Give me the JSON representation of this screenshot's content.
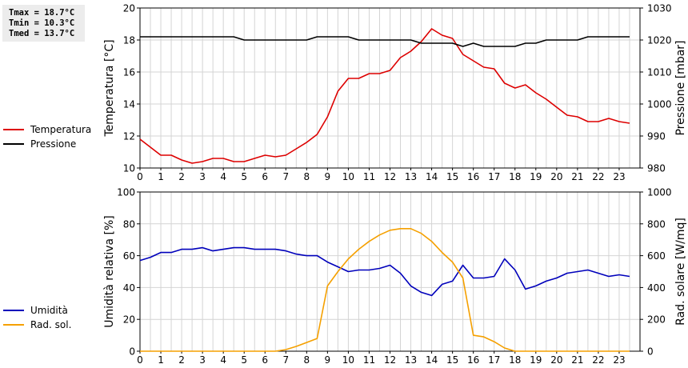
{
  "stats": {
    "tmax": "Tmax = 18.7°C",
    "tmin": "Tmin = 10.3°C",
    "tmed": "Tmed = 13.7°C"
  },
  "colors": {
    "temperature": "#dd0000",
    "pressure": "#000000",
    "humidity": "#0000bb",
    "radiation": "#f5a000"
  },
  "chart_data": [
    {
      "type": "line",
      "x_ticks": [
        0,
        1,
        2,
        3,
        4,
        5,
        6,
        7,
        8,
        9,
        10,
        11,
        12,
        13,
        14,
        15,
        16,
        17,
        18,
        19,
        20,
        21,
        22,
        23
      ],
      "xlim": [
        0,
        24
      ],
      "ylabel": "Temperatura [°C]",
      "ylim": [
        10,
        20
      ],
      "y_ticks": [
        10,
        12,
        14,
        16,
        18,
        20
      ],
      "y2label": "Pressione [mbar]",
      "y2lim": [
        980,
        1030
      ],
      "y2_ticks": [
        980,
        990,
        1000,
        1010,
        1020,
        1030
      ],
      "grid": true,
      "legend_position": "left",
      "series": [
        {
          "name": "Temperatura",
          "axis": "left",
          "x": [
            0,
            0.5,
            1,
            1.5,
            2,
            2.5,
            3,
            3.5,
            4,
            4.5,
            5,
            5.5,
            6,
            6.5,
            7,
            7.5,
            8,
            8.5,
            9,
            9.5,
            10,
            10.5,
            11,
            11.5,
            12,
            12.5,
            13,
            13.5,
            14,
            14.5,
            15,
            15.5,
            16,
            16.5,
            17,
            17.5,
            18,
            18.5,
            19,
            19.5,
            20,
            20.5,
            21,
            21.5,
            22,
            22.5,
            23,
            23.5
          ],
          "y": [
            11.8,
            11.3,
            10.8,
            10.8,
            10.5,
            10.3,
            10.4,
            10.6,
            10.6,
            10.4,
            10.4,
            10.6,
            10.8,
            10.7,
            10.8,
            11.2,
            11.6,
            12.1,
            13.2,
            14.8,
            15.6,
            15.6,
            15.9,
            15.9,
            16.1,
            16.9,
            17.3,
            17.9,
            18.7,
            18.3,
            18.1,
            17.1,
            16.7,
            16.3,
            16.2,
            15.3,
            15.0,
            15.2,
            14.7,
            14.3,
            13.8,
            13.3,
            13.2,
            12.9,
            12.9,
            13.1,
            12.9,
            12.8
          ]
        },
        {
          "name": "Pressione",
          "axis": "right",
          "x": [
            0,
            0.5,
            1,
            1.5,
            2,
            2.5,
            3,
            3.5,
            4,
            4.5,
            5,
            5.5,
            6,
            6.5,
            7,
            7.5,
            8,
            8.5,
            9,
            9.5,
            10,
            10.5,
            11,
            11.5,
            12,
            12.5,
            13,
            13.5,
            14,
            14.5,
            15,
            15.5,
            16,
            16.5,
            17,
            17.5,
            18,
            18.5,
            19,
            19.5,
            20,
            20.5,
            21,
            21.5,
            22,
            22.5,
            23,
            23.5
          ],
          "y": [
            1021,
            1021,
            1021,
            1021,
            1021,
            1021,
            1021,
            1021,
            1021,
            1021,
            1020,
            1020,
            1020,
            1020,
            1020,
            1020,
            1020,
            1021,
            1021,
            1021,
            1021,
            1020,
            1020,
            1020,
            1020,
            1020,
            1020,
            1019,
            1019,
            1019,
            1019,
            1018,
            1019,
            1018,
            1018,
            1018,
            1018,
            1019,
            1019,
            1020,
            1020,
            1020,
            1020,
            1021,
            1021,
            1021,
            1021,
            1021
          ]
        }
      ]
    },
    {
      "type": "line",
      "x_ticks": [
        0,
        1,
        2,
        3,
        4,
        5,
        6,
        7,
        8,
        9,
        10,
        11,
        12,
        13,
        14,
        15,
        16,
        17,
        18,
        19,
        20,
        21,
        22,
        23
      ],
      "xlim": [
        0,
        24
      ],
      "ylabel": "Umidità relativa [%]",
      "ylim": [
        0,
        100
      ],
      "y_ticks": [
        0,
        20,
        40,
        60,
        80,
        100
      ],
      "y2label": "Rad. solare [W/mq]",
      "y2lim": [
        0,
        1000
      ],
      "y2_ticks": [
        0,
        200,
        400,
        600,
        800,
        1000
      ],
      "grid": true,
      "legend_position": "left",
      "series": [
        {
          "name": "Umidità",
          "axis": "left",
          "x": [
            0,
            0.5,
            1,
            1.5,
            2,
            2.5,
            3,
            3.5,
            4,
            4.5,
            5,
            5.5,
            6,
            6.5,
            7,
            7.5,
            8,
            8.5,
            9,
            9.5,
            10,
            10.5,
            11,
            11.5,
            12,
            12.5,
            13,
            13.5,
            14,
            14.5,
            15,
            15.5,
            16,
            16.5,
            17,
            17.5,
            18,
            18.5,
            19,
            19.5,
            20,
            20.5,
            21,
            21.5,
            22,
            22.5,
            23,
            23.5
          ],
          "y": [
            57,
            59,
            62,
            62,
            64,
            64,
            65,
            63,
            64,
            65,
            65,
            64,
            64,
            64,
            63,
            61,
            60,
            60,
            56,
            53,
            50,
            51,
            51,
            52,
            54,
            49,
            41,
            37,
            35,
            42,
            44,
            54,
            46,
            46,
            47,
            58,
            51,
            39,
            41,
            44,
            46,
            49,
            50,
            51,
            49,
            47,
            48,
            47
          ]
        },
        {
          "name": "Rad. sol.",
          "axis": "right",
          "x": [
            0,
            0.5,
            1,
            1.5,
            2,
            2.5,
            3,
            3.5,
            4,
            4.5,
            5,
            5.5,
            6,
            6.5,
            7,
            7.5,
            8,
            8.5,
            9,
            9.5,
            10,
            10.5,
            11,
            11.5,
            12,
            12.5,
            13,
            13.5,
            14,
            14.5,
            15,
            15.5,
            16,
            16.5,
            17,
            17.5,
            18,
            18.5,
            19,
            19.5,
            20,
            20.5,
            21,
            21.5,
            22,
            22.5,
            23,
            23.5
          ],
          "y": [
            0,
            0,
            0,
            0,
            0,
            0,
            0,
            0,
            0,
            0,
            0,
            0,
            0,
            0,
            10,
            30,
            55,
            80,
            410,
            500,
            580,
            640,
            690,
            730,
            760,
            770,
            770,
            740,
            690,
            620,
            560,
            460,
            100,
            90,
            60,
            20,
            0,
            0,
            0,
            0,
            0,
            0,
            0,
            0,
            0,
            0,
            0,
            0
          ]
        }
      ]
    }
  ]
}
